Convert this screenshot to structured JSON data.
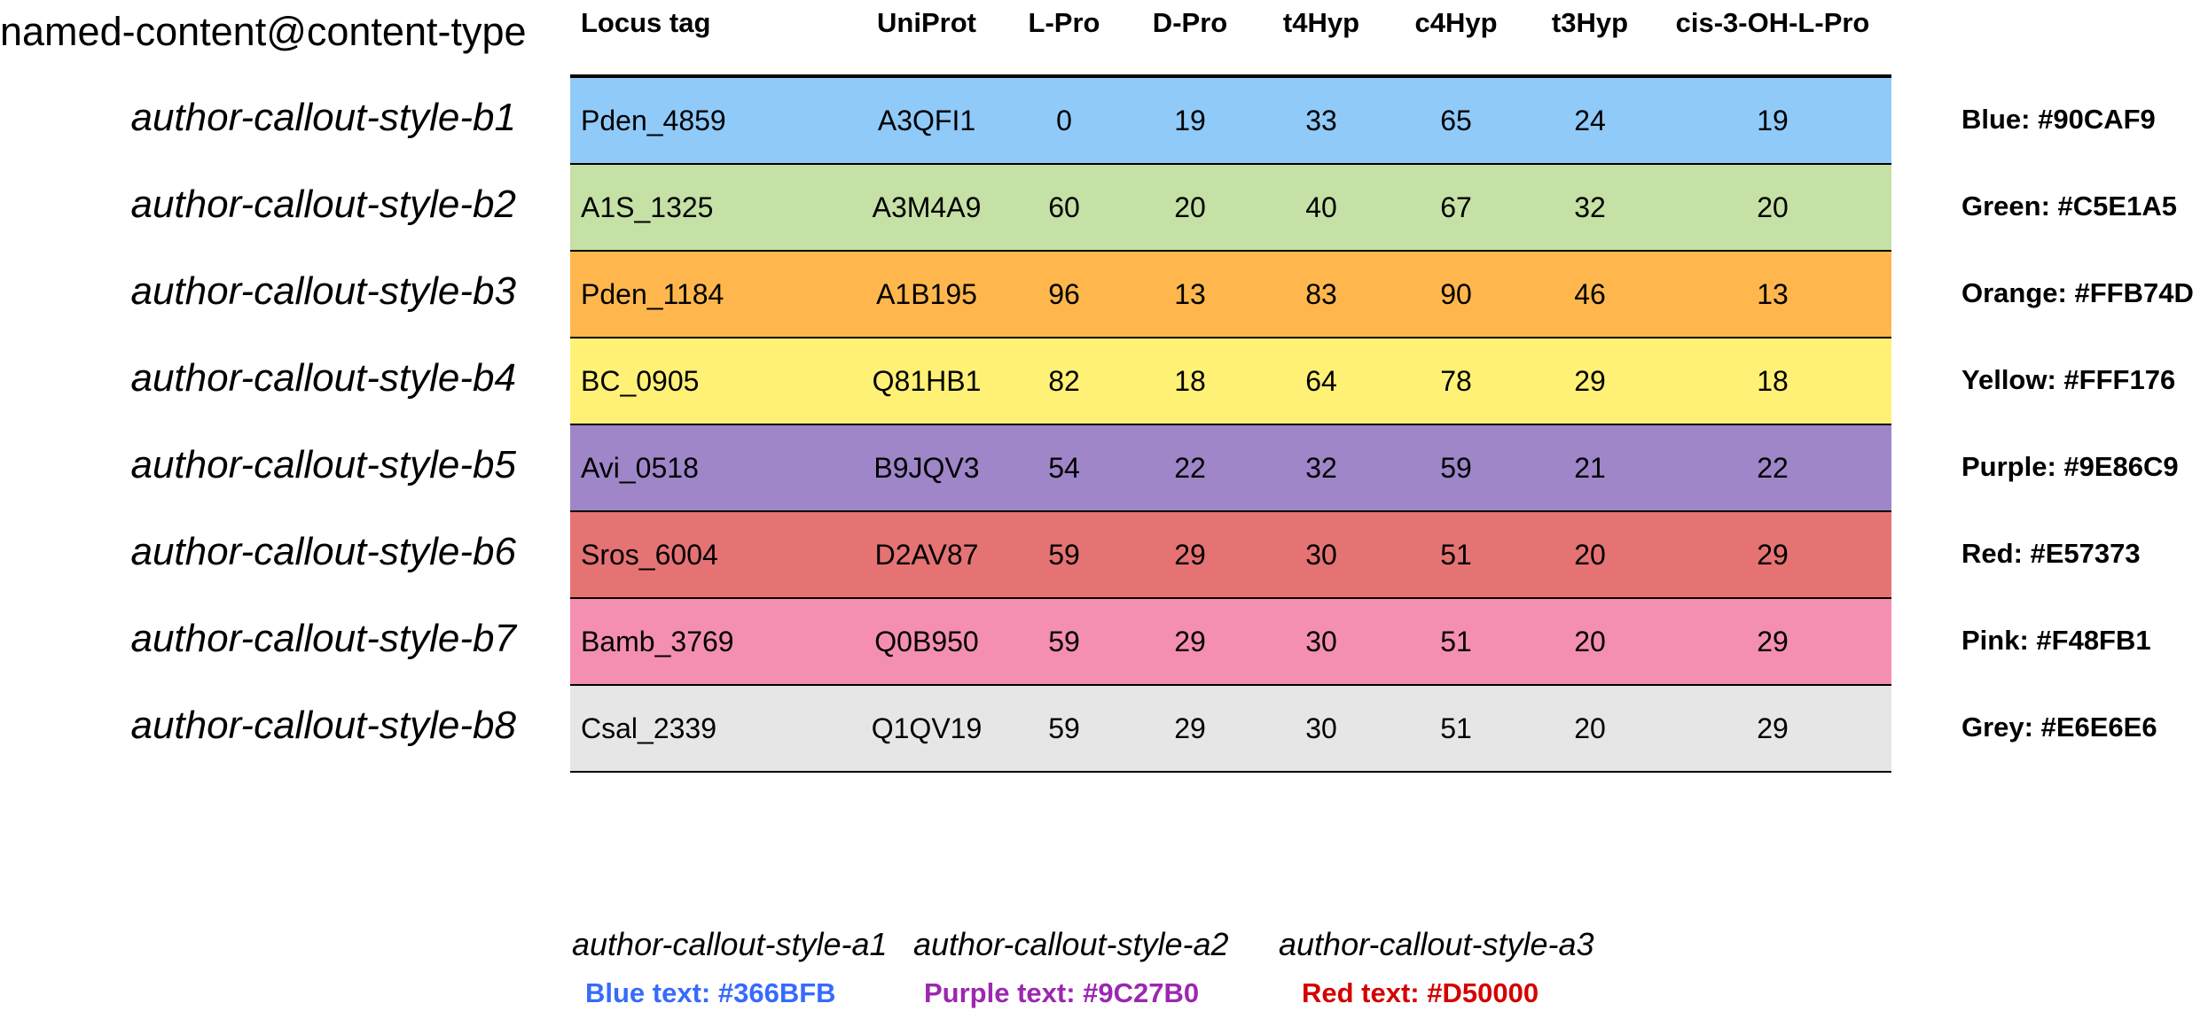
{
  "header_label": "named-content@content-type",
  "columns": [
    "Locus tag",
    "UniProt",
    "L-Pro",
    "D-Pro",
    "t4Hyp",
    "c4Hyp",
    "t3Hyp",
    "cis-3-OH-L-Pro"
  ],
  "rows": [
    {
      "style": "author-callout-style-b1",
      "color": "#90CAF9",
      "swatch": "Blue: #90CAF9",
      "cells": [
        "Pden_4859",
        "A3QFI1",
        "0",
        "19",
        "33",
        "65",
        "24",
        "19"
      ]
    },
    {
      "style": "author-callout-style-b2",
      "color": "#C5E1A5",
      "swatch": "Green: #C5E1A5",
      "cells": [
        "A1S_1325",
        "A3M4A9",
        "60",
        "20",
        "40",
        "67",
        "32",
        "20"
      ]
    },
    {
      "style": "author-callout-style-b3",
      "color": "#FFB74D",
      "swatch": "Orange: #FFB74D",
      "cells": [
        "Pden_1184",
        "A1B195",
        "96",
        "13",
        "83",
        "90",
        "46",
        "13"
      ]
    },
    {
      "style": "author-callout-style-b4",
      "color": "#FFF176",
      "swatch": "Yellow: #FFF176",
      "cells": [
        "BC_0905",
        "Q81HB1",
        "82",
        "18",
        "64",
        "78",
        "29",
        "18"
      ]
    },
    {
      "style": "author-callout-style-b5",
      "color": "#9E86C9",
      "swatch": "Purple: #9E86C9",
      "cells": [
        "Avi_0518",
        "B9JQV3",
        "54",
        "22",
        "32",
        "59",
        "21",
        "22"
      ]
    },
    {
      "style": "author-callout-style-b6",
      "color": "#E57373",
      "swatch": "Red: #E57373",
      "cells": [
        "Sros_6004",
        "D2AV87",
        "59",
        "29",
        "30",
        "51",
        "20",
        "29"
      ]
    },
    {
      "style": "author-callout-style-b7",
      "color": "#F48FB1",
      "swatch": "Pink: #F48FB1",
      "cells": [
        "Bamb_3769",
        "Q0B950",
        "59",
        "29",
        "30",
        "51",
        "20",
        "29"
      ]
    },
    {
      "style": "author-callout-style-b8",
      "color": "#E6E6E6",
      "swatch": "Grey: #E6E6E6",
      "cells": [
        "Csal_2339",
        "Q1QV19",
        "59",
        "29",
        "30",
        "51",
        "20",
        "29"
      ]
    }
  ],
  "text_styles": [
    {
      "style": "author-callout-style-a1",
      "label": "Blue text: #366BFB",
      "color": "#366BFB"
    },
    {
      "style": "author-callout-style-a2",
      "label": "Purple text: #9C27B0",
      "color": "#9C27B0"
    },
    {
      "style": "author-callout-style-a3",
      "label": "Red text: #D50000",
      "color": "#D50000"
    }
  ]
}
